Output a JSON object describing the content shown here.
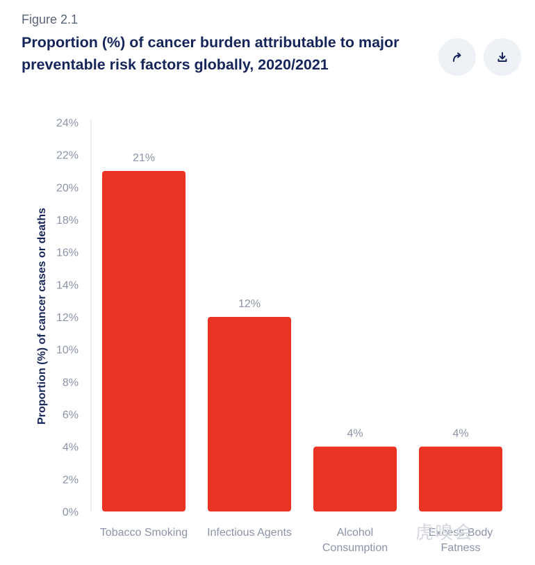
{
  "figure_label": "Figure 2.1",
  "icons": {
    "share": "share-arrow-icon",
    "download": "download-icon"
  },
  "colors": {
    "bar": "#ea3323",
    "title": "#15255a",
    "axis_text": "#8a94a6"
  },
  "watermark": "虎嗅会",
  "chart_data": {
    "type": "bar",
    "title": "Proportion (%) of cancer burden attributable to major preventable risk factors globally, 2020/2021",
    "ylabel": "Proportion (%) of cancer cases or deaths",
    "xlabel": "",
    "categories": [
      "Tobacco Smoking",
      "Infectious Agents",
      "Alcohol Consumption",
      "Excess Body Fatness"
    ],
    "values": [
      21,
      12,
      4,
      4
    ],
    "data_labels": [
      "21%",
      "12%",
      "4%",
      "4%"
    ],
    "ylim": [
      0,
      24
    ],
    "yticks": [
      0,
      2,
      4,
      6,
      8,
      10,
      12,
      14,
      16,
      18,
      20,
      22,
      24
    ],
    "ytick_labels": [
      "0%",
      "2%",
      "4%",
      "6%",
      "8%",
      "10%",
      "12%",
      "14%",
      "16%",
      "18%",
      "20%",
      "22%",
      "24%"
    ],
    "grid": false,
    "legend": "none"
  }
}
